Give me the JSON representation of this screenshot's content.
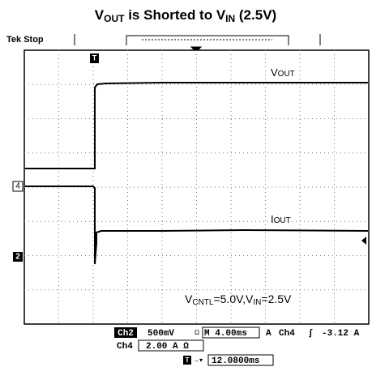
{
  "title": {
    "v1": "V",
    "sub1": "OUT",
    "mid": " is Shorted to V",
    "sub2": "IN",
    "end": " (2.5V)"
  },
  "header": {
    "status": "Tek Stop",
    "trigger_marker": "T"
  },
  "traces": {
    "vout": {
      "main": "V",
      "small": "OUT"
    },
    "iout": {
      "main": "I",
      "small": "OUT"
    },
    "ch4_marker": "4",
    "ch2_marker": "2"
  },
  "annotation": {
    "a": "V",
    "b": "CNTL",
    "c": "=5.0V,V",
    "d": "IN",
    "e": "=2.5V"
  },
  "status_bar": {
    "ch2": "Ch2",
    "ch2_scale": "500mV",
    "ch2_coupling": "Ω",
    "timebase": "M 4.00ms",
    "a": "A",
    "trig_ch": "Ch4",
    "trig_slope": "∫",
    "trig_level": "-3.12 A",
    "ch4": "Ch4",
    "ch4_scale": "2.00 A Ω",
    "trig_pos_marker": "T",
    "trig_pos": "12.0800ms"
  }
}
